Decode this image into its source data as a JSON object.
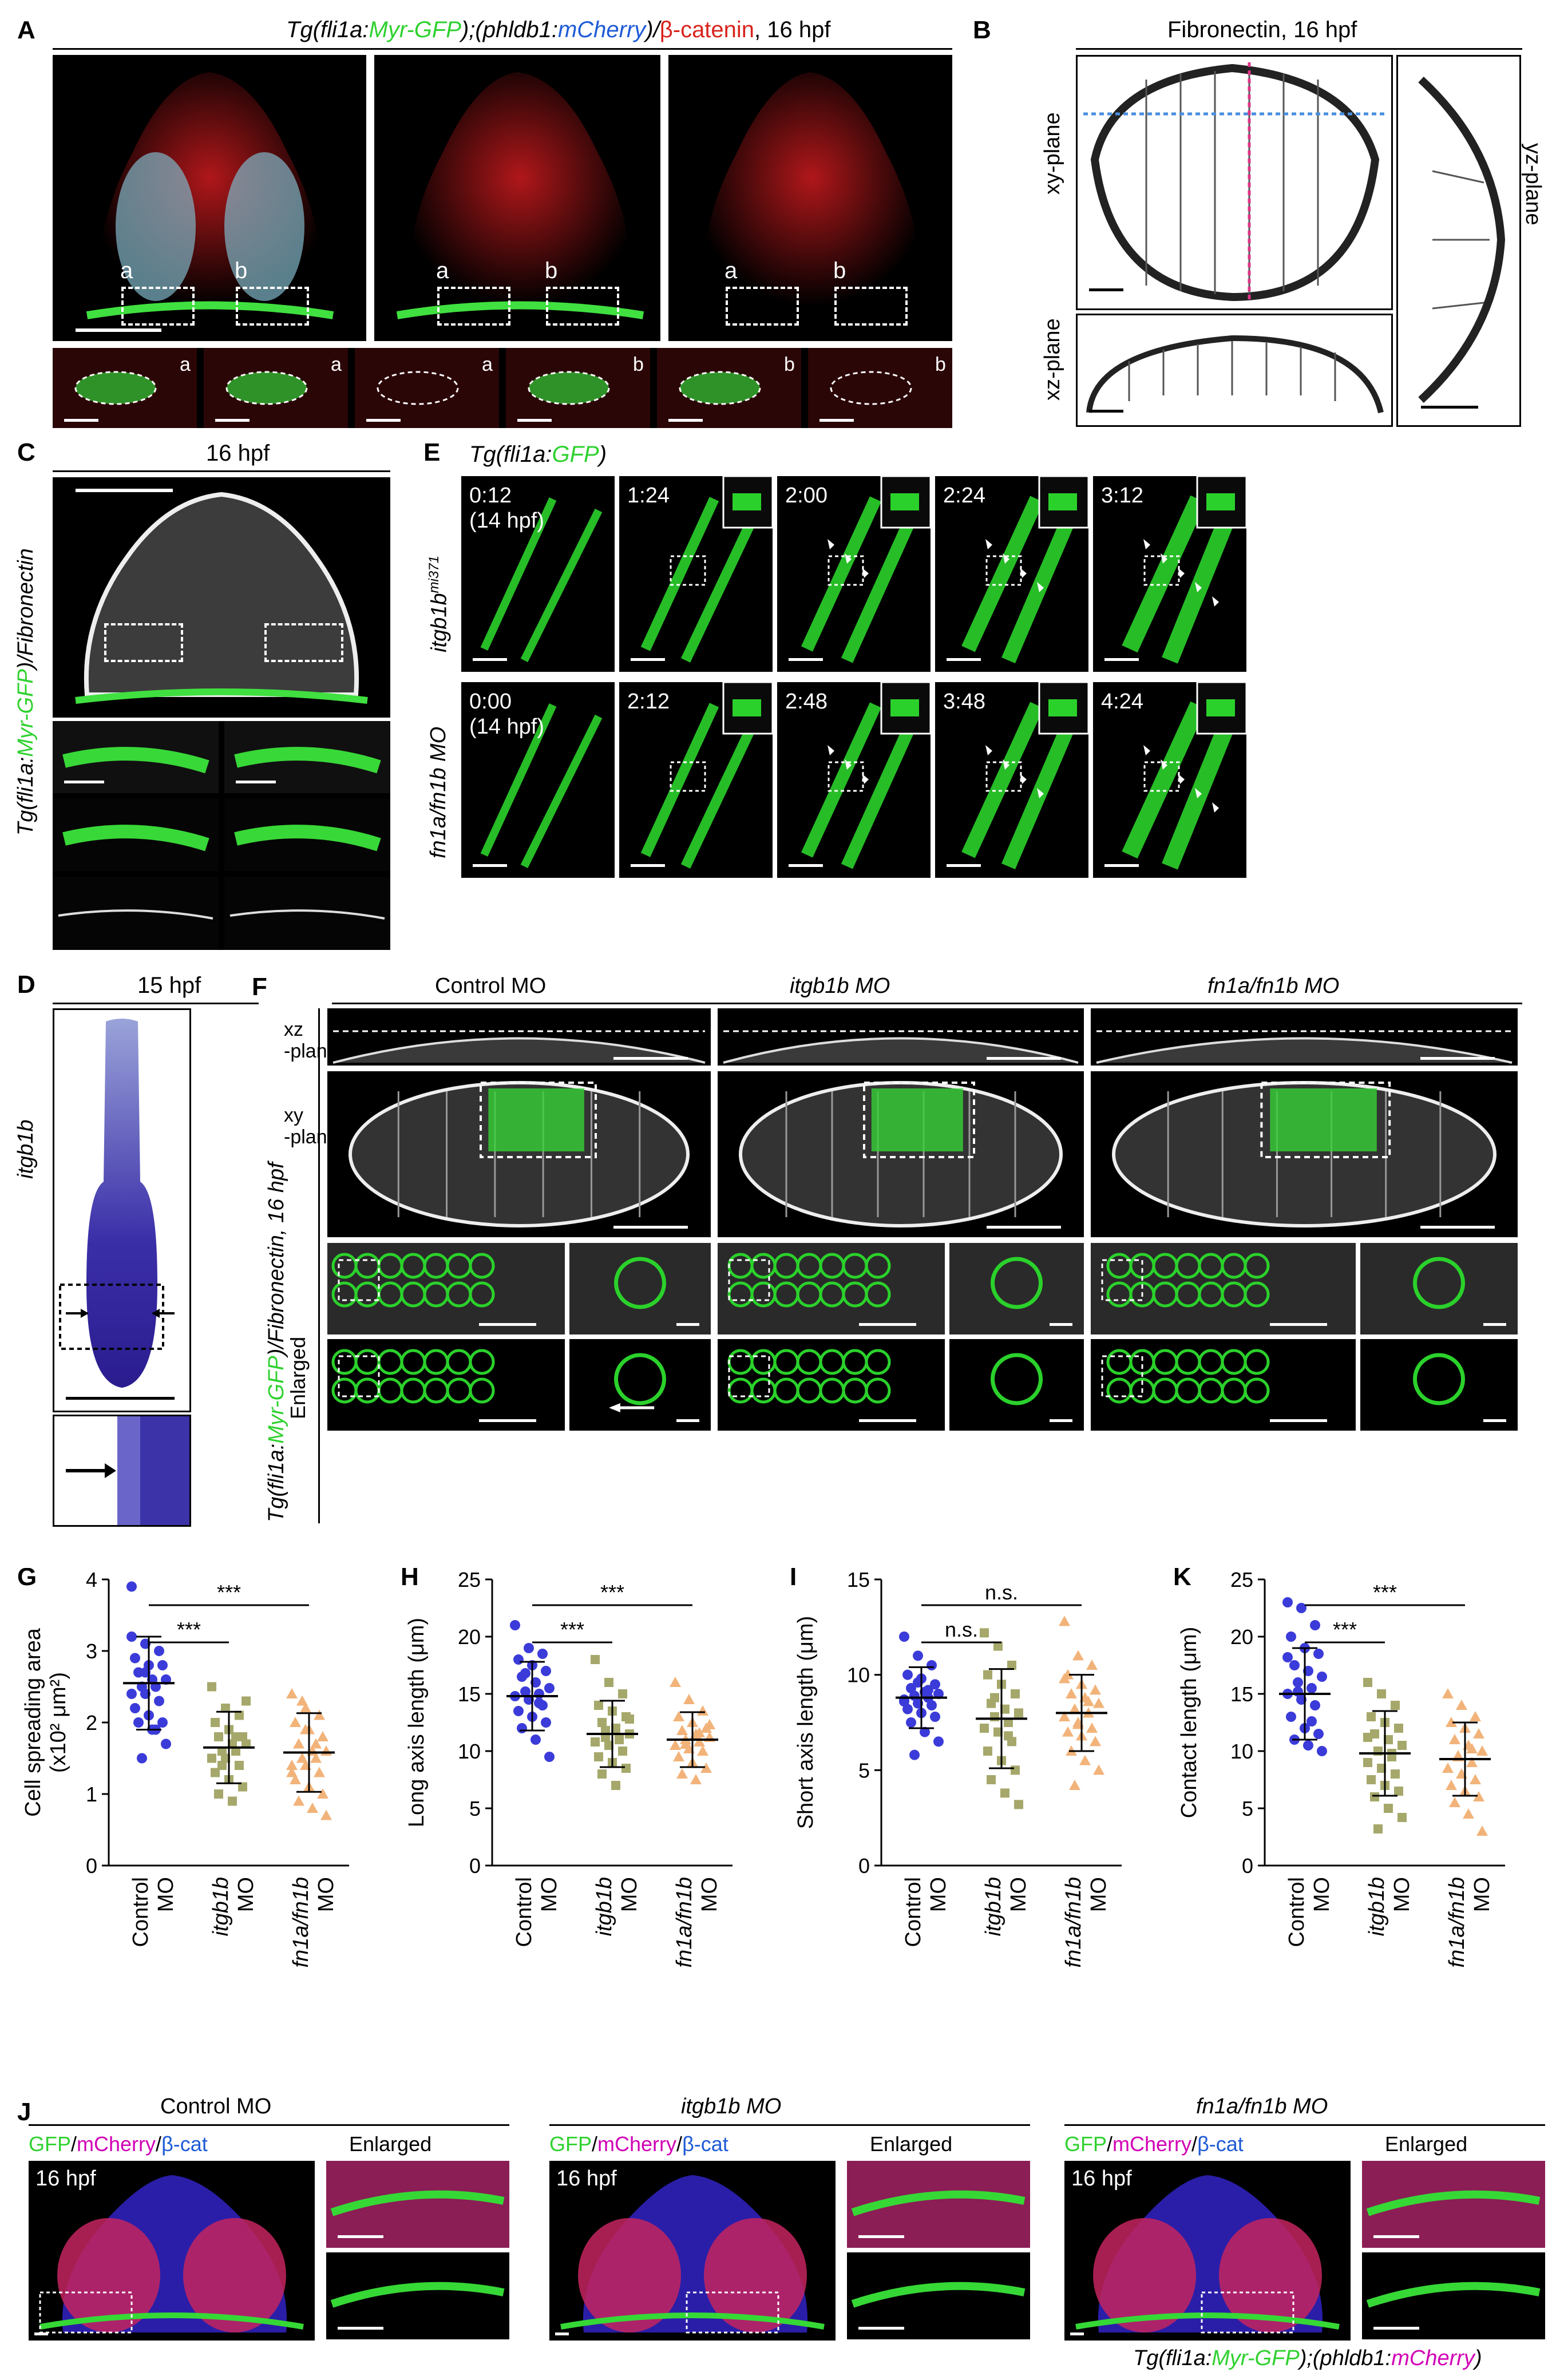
{
  "panelA": {
    "letter": "A",
    "title_prefix": "Tg(fli1a:",
    "title_gfp": "Myr-GFP",
    "title_mid": ");(phldb1:",
    "title_mcherry": "mCherry",
    "title_suffix": ")/",
    "title_bcat": "β-catenin",
    "title_stage": ", 16 hpf",
    "box_a": "a",
    "box_b": "b"
  },
  "panelB": {
    "letter": "B",
    "title": "Fibronectin, 16 hpf",
    "xy": "xy-plane",
    "xz": "xz-plane",
    "yz": "yz-plane"
  },
  "panelC": {
    "letter": "C",
    "stage": "16 hpf",
    "side_label": "Tg(fli1a:Myr-GFP)/Fibronectin"
  },
  "panelD": {
    "letter": "D",
    "stage": "15 hpf",
    "gene": "itgb1b"
  },
  "panelE": {
    "letter": "E",
    "title": "Tg(fli1a:GFP)",
    "row1_label": "itgb1b",
    "row1_sup": "mi371",
    "row2_label": "fn1a/fn1b MO",
    "row1_times": [
      "0:12\n(14 hpf)",
      "1:24",
      "2:00",
      "2:24",
      "3:12"
    ],
    "row2_times": [
      "0:00\n(14 hpf)",
      "2:12",
      "2:48",
      "3:48",
      "4:24"
    ]
  },
  "panelF": {
    "letter": "F",
    "columns": [
      "Control MO",
      "itgb1b MO",
      "fn1a/fn1b MO"
    ],
    "row_xz": "xz\n-plane",
    "row_xy": "xy\n-plane",
    "row_enlarged": "Enlarged",
    "side_label": "Tg(fli1a:Myr-GFP)/Fibronectin, 16 hpf"
  },
  "groups": [
    "Control MO",
    "itgb1b MO",
    "fn1a/fn1b MO"
  ],
  "chart_data": [
    {
      "panel": "G",
      "type": "scatter",
      "ylabel": "Cell spreading area\n(x10² μm²)",
      "ylim": [
        0,
        4
      ],
      "yticks": [
        0,
        1,
        2,
        3,
        4
      ],
      "categories": [
        "Control MO",
        "itgb1b MO",
        "fn1a/fn1b MO"
      ],
      "mean": [
        2.55,
        1.65,
        1.58
      ],
      "sd": [
        0.65,
        0.5,
        0.55
      ],
      "series": [
        {
          "values": [
            3.9,
            3.1,
            3.0,
            2.9,
            2.8,
            2.8,
            2.7,
            2.6,
            2.6,
            2.5,
            2.5,
            2.4,
            2.4,
            2.3,
            2.2,
            2.1,
            2.0,
            2.0,
            1.9,
            1.7,
            1.5,
            1.9,
            3.2,
            2.7
          ]
        },
        {
          "values": [
            2.5,
            2.2,
            2.1,
            2.0,
            1.9,
            1.8,
            1.8,
            1.7,
            1.7,
            1.6,
            1.6,
            1.5,
            1.5,
            1.4,
            1.3,
            1.2,
            1.1,
            1.0,
            0.9,
            2.3,
            1.4,
            1.8
          ]
        },
        {
          "values": [
            2.4,
            2.2,
            2.1,
            2.0,
            1.9,
            1.8,
            1.7,
            1.6,
            1.6,
            1.5,
            1.5,
            1.4,
            1.4,
            1.3,
            1.2,
            1.1,
            1.0,
            0.9,
            0.8,
            0.7,
            2.3,
            1.7,
            1.3,
            1.9
          ]
        }
      ],
      "colors": [
        "#3b3bd9",
        "#a5a86a",
        "#f2b37a"
      ],
      "sig": [
        {
          "from": 0,
          "to": 1,
          "label": "***"
        },
        {
          "from": 0,
          "to": 2,
          "label": "***"
        }
      ]
    },
    {
      "panel": "H",
      "type": "scatter",
      "ylabel": "Long axis length (μm)",
      "ylim": [
        0,
        25
      ],
      "yticks": [
        0,
        5,
        10,
        15,
        20,
        25
      ],
      "categories": [
        "Control MO",
        "itgb1b MO",
        "fn1a/fn1b MO"
      ],
      "mean": [
        14.8,
        11.5,
        11.0
      ],
      "sd": [
        3.0,
        2.9,
        2.4
      ],
      "series": [
        {
          "values": [
            21,
            19,
            18.5,
            18,
            17.5,
            17,
            16.5,
            16,
            15.5,
            15.2,
            15,
            14.8,
            14.5,
            14,
            13.5,
            13,
            12.5,
            12,
            11,
            9.5,
            16.8,
            14.2
          ]
        },
        {
          "values": [
            18,
            16,
            15,
            14,
            13.5,
            13,
            12.5,
            12,
            11.5,
            11.2,
            11,
            10.8,
            10.5,
            10,
            9.5,
            9,
            8.5,
            8,
            7,
            12.8,
            11.8
          ]
        },
        {
          "values": [
            16,
            14.5,
            13.5,
            13,
            12.5,
            12,
            11.8,
            11.5,
            11.2,
            11,
            10.8,
            10.5,
            10.2,
            10,
            9.5,
            9,
            8.5,
            8,
            7.5,
            12.3,
            10.6,
            11.6
          ]
        }
      ],
      "colors": [
        "#3b3bd9",
        "#a5a86a",
        "#f2b37a"
      ],
      "sig": [
        {
          "from": 0,
          "to": 1,
          "label": "***"
        },
        {
          "from": 0,
          "to": 2,
          "label": "***"
        }
      ]
    },
    {
      "panel": "I",
      "type": "scatter",
      "ylabel": "Short axis length (μm)",
      "ylim": [
        0,
        15
      ],
      "yticks": [
        0,
        5,
        10,
        15
      ],
      "categories": [
        "Control MO",
        "itgb1b MO",
        "fn1a/fn1b MO"
      ],
      "mean": [
        8.8,
        7.7,
        8.0
      ],
      "sd": [
        1.6,
        2.6,
        2.0
      ],
      "series": [
        {
          "values": [
            12,
            11,
            10.5,
            10,
            9.8,
            9.5,
            9.3,
            9.1,
            9,
            8.9,
            8.8,
            8.7,
            8.5,
            8.4,
            8.2,
            8,
            7.8,
            7.5,
            7,
            6.5,
            5.8,
            9.2,
            8.6,
            9.6
          ]
        },
        {
          "values": [
            12.2,
            11.5,
            10.5,
            10,
            9.5,
            9,
            8.5,
            8.2,
            8,
            7.8,
            7.5,
            7.2,
            7,
            6.5,
            6,
            5.5,
            5,
            4.5,
            3.8,
            3.2,
            8.8,
            6.8
          ]
        },
        {
          "values": [
            12.8,
            11,
            10.5,
            10,
            9.5,
            9.2,
            9,
            8.8,
            8.5,
            8.2,
            8,
            7.8,
            7.5,
            7.2,
            7,
            6.8,
            6.5,
            6,
            5.5,
            5,
            4.2,
            8.6,
            9.8,
            7.4
          ]
        }
      ],
      "colors": [
        "#3b3bd9",
        "#a5a86a",
        "#f2b37a"
      ],
      "sig": [
        {
          "from": 0,
          "to": 1,
          "label": "n.s."
        },
        {
          "from": 0,
          "to": 2,
          "label": "n.s."
        }
      ]
    },
    {
      "panel": "K",
      "type": "scatter",
      "ylabel": "Contact length (μm)",
      "ylim": [
        0,
        25
      ],
      "yticks": [
        0,
        5,
        10,
        15,
        20,
        25
      ],
      "categories": [
        "Control MO",
        "itgb1b MO",
        "fn1a/fn1b MO"
      ],
      "mean": [
        15.0,
        9.8,
        9.3
      ],
      "sd": [
        4.0,
        3.7,
        3.2
      ],
      "series": [
        {
          "values": [
            23,
            22.5,
            21,
            20,
            19,
            18.5,
            17.5,
            17,
            16.5,
            16,
            15.5,
            15,
            14.5,
            14,
            13,
            12,
            11.5,
            11,
            10.5,
            10,
            15.2,
            12.6,
            18.2
          ]
        },
        {
          "values": [
            16,
            15,
            14,
            13,
            12.5,
            12,
            11.5,
            11,
            10.5,
            10,
            9.5,
            9,
            8.5,
            8,
            7.5,
            7,
            6.5,
            6,
            5,
            4.2,
            3.2,
            9.8,
            11.2
          ]
        },
        {
          "values": [
            15,
            14,
            13,
            12.5,
            12,
            11.5,
            11,
            10.5,
            10,
            9.5,
            9,
            8.5,
            8,
            7.5,
            7,
            6.5,
            6,
            5.5,
            4.5,
            3,
            9.6,
            10.2
          ]
        }
      ],
      "colors": [
        "#3b3bd9",
        "#a5a86a",
        "#f2b37a"
      ],
      "sig": [
        {
          "from": 0,
          "to": 1,
          "label": "***"
        },
        {
          "from": 0,
          "to": 2,
          "label": "***"
        }
      ]
    }
  ],
  "panelJ": {
    "letter": "J",
    "groups": [
      "Control MO",
      "itgb1b MO",
      "fn1a/fn1b MO"
    ],
    "sub_gfp": "GFP",
    "sub_mcherry": "mCherry",
    "sub_bcat": "β-cat",
    "sub_sep": "/",
    "enlarged": "Enlarged",
    "stage": "16 hpf",
    "footer_prefix": "Tg(fli1a:",
    "footer_gfp": "Myr-GFP",
    "footer_mid": ");(phldb1:",
    "footer_mcherry": "mCherry",
    "footer_suffix": ")"
  }
}
